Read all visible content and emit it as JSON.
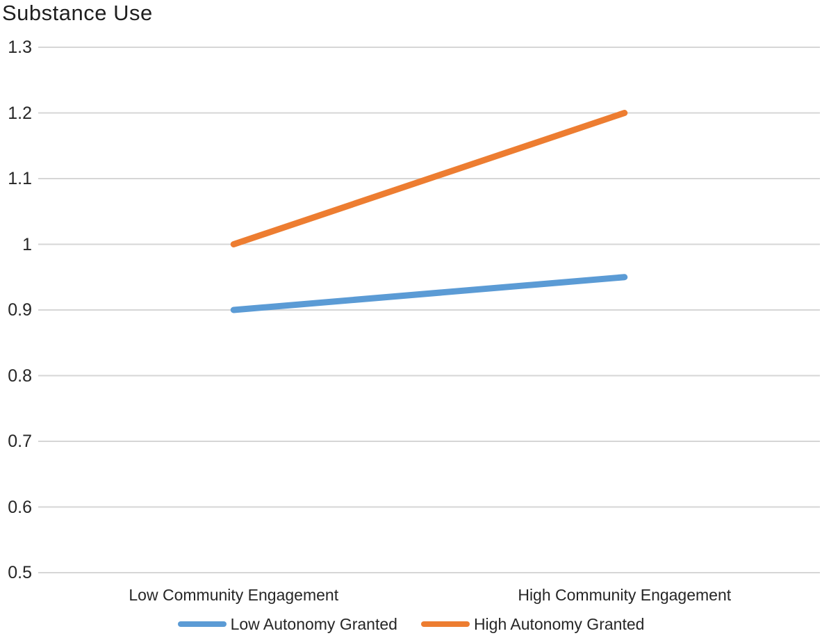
{
  "chart_data": {
    "type": "line",
    "title": "Substance Use",
    "categories": [
      "Low Community Engagement",
      "High Community Engagement"
    ],
    "series": [
      {
        "name": "Low Autonomy Granted",
        "color": "#5B9BD5",
        "values": [
          0.9,
          0.95
        ]
      },
      {
        "name": "High Autonomy Granted",
        "color": "#ED7D31",
        "values": [
          1.0,
          1.2
        ]
      }
    ],
    "yticks": [
      "1.3",
      "1.2",
      "1.1",
      "1",
      "0.9",
      "0.8",
      "0.7",
      "0.6",
      "0.5"
    ],
    "ytick_values": [
      1.3,
      1.2,
      1.1,
      1.0,
      0.9,
      0.8,
      0.7,
      0.6,
      0.5
    ],
    "ylim": [
      0.5,
      1.3
    ],
    "xlabel": "",
    "ylabel": "",
    "grid": "horizontal",
    "gridline_color": "#D6D6D6",
    "text_color": "#262626",
    "legend_position": "bottom"
  }
}
